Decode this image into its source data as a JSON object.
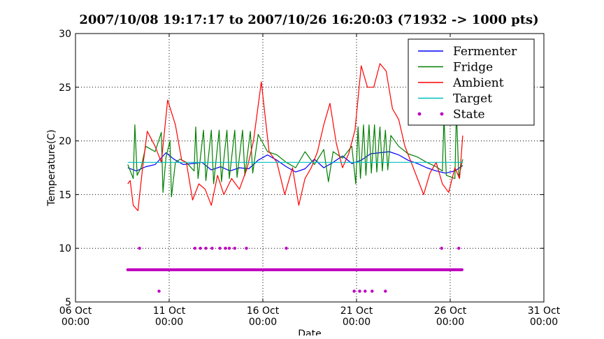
{
  "chart_data": {
    "type": "line",
    "title": "2007/10/08 19:17:17 to 2007/10/26 16:20:03 (71932 -> 1000 pts)",
    "xlabel": "Date",
    "ylabel": "Temperature(C)",
    "x_type": "date",
    "xlim": [
      "2007-10-06 00:00",
      "2007-10-31 00:00"
    ],
    "ylim": [
      5,
      30
    ],
    "grid": true,
    "legend_position": "top-right",
    "x_ticks": [
      {
        "value": "2007-10-06 00:00",
        "line1": "06 Oct",
        "line2": "00:00"
      },
      {
        "value": "2007-10-11 00:00",
        "line1": "11 Oct",
        "line2": "00:00"
      },
      {
        "value": "2007-10-16 00:00",
        "line1": "16 Oct",
        "line2": "00:00"
      },
      {
        "value": "2007-10-21 00:00",
        "line1": "21 Oct",
        "line2": "00:00"
      },
      {
        "value": "2007-10-26 00:00",
        "line1": "26 Oct",
        "line2": "00:00"
      },
      {
        "value": "2007-10-31 00:00",
        "line1": "31 Oct",
        "line2": "00:00"
      }
    ],
    "y_ticks": [
      "5",
      "10",
      "15",
      "20",
      "25",
      "30"
    ],
    "series": [
      {
        "name": "Fermenter",
        "color": "#0000ff",
        "style": "line",
        "points": [
          [
            "2007-10-08 19:00",
            17.5
          ],
          [
            "2007-10-09 06:00",
            17.2
          ],
          [
            "2007-10-09 18:00",
            17.6
          ],
          [
            "2007-10-10 06:00",
            17.8
          ],
          [
            "2007-10-10 20:00",
            18.9
          ],
          [
            "2007-10-11 06:00",
            18.3
          ],
          [
            "2007-10-11 18:00",
            17.8
          ],
          [
            "2007-10-12 06:00",
            17.9
          ],
          [
            "2007-10-12 18:00",
            18.0
          ],
          [
            "2007-10-13 06:00",
            17.3
          ],
          [
            "2007-10-13 18:00",
            17.6
          ],
          [
            "2007-10-14 06:00",
            17.2
          ],
          [
            "2007-10-14 18:00",
            17.5
          ],
          [
            "2007-10-15 06:00",
            17.4
          ],
          [
            "2007-10-15 18:00",
            18.2
          ],
          [
            "2007-10-16 06:00",
            18.7
          ],
          [
            "2007-10-16 18:00",
            18.2
          ],
          [
            "2007-10-17 06:00",
            17.6
          ],
          [
            "2007-10-17 18:00",
            17.1
          ],
          [
            "2007-10-18 06:00",
            17.4
          ],
          [
            "2007-10-18 18:00",
            18.3
          ],
          [
            "2007-10-19 06:00",
            17.5
          ],
          [
            "2007-10-19 18:00",
            18.0
          ],
          [
            "2007-10-20 06:00",
            18.6
          ],
          [
            "2007-10-20 18:00",
            17.9
          ],
          [
            "2007-10-21 06:00",
            18.2
          ],
          [
            "2007-10-21 18:00",
            18.8
          ],
          [
            "2007-10-22 06:00",
            18.9
          ],
          [
            "2007-10-22 18:00",
            19.0
          ],
          [
            "2007-10-23 06:00",
            18.7
          ],
          [
            "2007-10-23 18:00",
            18.2
          ],
          [
            "2007-10-24 06:00",
            17.9
          ],
          [
            "2007-10-24 18:00",
            17.5
          ],
          [
            "2007-10-25 06:00",
            17.2
          ],
          [
            "2007-10-25 18:00",
            17.0
          ],
          [
            "2007-10-26 06:00",
            17.2
          ],
          [
            "2007-10-26 16:00",
            17.7
          ]
        ]
      },
      {
        "name": "Fridge",
        "color": "#008000",
        "style": "line",
        "points": [
          [
            "2007-10-08 19:00",
            17.8
          ],
          [
            "2007-10-09 02:00",
            16.5
          ],
          [
            "2007-10-09 04:00",
            21.5
          ],
          [
            "2007-10-09 07:00",
            16.8
          ],
          [
            "2007-10-09 12:00",
            17.5
          ],
          [
            "2007-10-09 18:00",
            19.5
          ],
          [
            "2007-10-10 06:00",
            19.0
          ],
          [
            "2007-10-10 14:00",
            20.8
          ],
          [
            "2007-10-10 16:00",
            15.2
          ],
          [
            "2007-10-10 20:00",
            18.5
          ],
          [
            "2007-10-11 01:00",
            20.0
          ],
          [
            "2007-10-11 03:00",
            14.8
          ],
          [
            "2007-10-11 08:00",
            18.0
          ],
          [
            "2007-10-11 14:00",
            18.3
          ],
          [
            "2007-10-11 22:00",
            18.0
          ],
          [
            "2007-10-12 08:00",
            17.2
          ],
          [
            "2007-10-12 10:00",
            21.3
          ],
          [
            "2007-10-12 13:00",
            16.5
          ],
          [
            "2007-10-12 20:00",
            21.0
          ],
          [
            "2007-10-12 23:00",
            16.3
          ],
          [
            "2007-10-13 06:00",
            21.0
          ],
          [
            "2007-10-13 09:00",
            16.0
          ],
          [
            "2007-10-13 16:00",
            21.0
          ],
          [
            "2007-10-13 19:00",
            16.2
          ],
          [
            "2007-10-14 02:00",
            21.0
          ],
          [
            "2007-10-14 05:00",
            16.5
          ],
          [
            "2007-10-14 12:00",
            21.0
          ],
          [
            "2007-10-14 15:00",
            16.6
          ],
          [
            "2007-10-14 22:00",
            21.0
          ],
          [
            "2007-10-15 01:00",
            16.8
          ],
          [
            "2007-10-15 08:00",
            20.9
          ],
          [
            "2007-10-15 11:00",
            17.0
          ],
          [
            "2007-10-15 18:00",
            20.6
          ],
          [
            "2007-10-16 06:00",
            19.0
          ],
          [
            "2007-10-16 18:00",
            18.7
          ],
          [
            "2007-10-17 06:00",
            18.0
          ],
          [
            "2007-10-17 18:00",
            17.5
          ],
          [
            "2007-10-18 06:00",
            19.0
          ],
          [
            "2007-10-18 18:00",
            17.8
          ],
          [
            "2007-10-19 06:00",
            19.2
          ],
          [
            "2007-10-19 12:00",
            16.2
          ],
          [
            "2007-10-19 18:00",
            19.0
          ],
          [
            "2007-10-20 06:00",
            18.4
          ],
          [
            "2007-10-20 18:00",
            19.5
          ],
          [
            "2007-10-20 23:00",
            16.0
          ],
          [
            "2007-10-21 02:00",
            21.3
          ],
          [
            "2007-10-21 05:00",
            16.5
          ],
          [
            "2007-10-21 09:00",
            21.5
          ],
          [
            "2007-10-21 12:00",
            16.8
          ],
          [
            "2007-10-21 16:00",
            21.5
          ],
          [
            "2007-10-21 19:00",
            17.0
          ],
          [
            "2007-10-21 23:00",
            21.5
          ],
          [
            "2007-10-22 02:00",
            17.1
          ],
          [
            "2007-10-22 06:00",
            21.3
          ],
          [
            "2007-10-22 09:00",
            17.2
          ],
          [
            "2007-10-22 13:00",
            21.0
          ],
          [
            "2007-10-22 16:00",
            17.3
          ],
          [
            "2007-10-22 20:00",
            20.5
          ],
          [
            "2007-10-23 06:00",
            19.5
          ],
          [
            "2007-10-23 18:00",
            18.8
          ],
          [
            "2007-10-24 06:00",
            18.5
          ],
          [
            "2007-10-24 18:00",
            18.0
          ],
          [
            "2007-10-25 06:00",
            17.6
          ],
          [
            "2007-10-25 14:00",
            17.2
          ],
          [
            "2007-10-25 16:00",
            22.2
          ],
          [
            "2007-10-25 19:00",
            16.8
          ],
          [
            "2007-10-26 06:00",
            16.5
          ],
          [
            "2007-10-26 08:00",
            22.8
          ],
          [
            "2007-10-26 11:00",
            16.6
          ],
          [
            "2007-10-26 16:00",
            18.3
          ]
        ]
      },
      {
        "name": "Ambient",
        "color": "#ff0000",
        "style": "line",
        "points": [
          [
            "2007-10-08 19:00",
            16.0
          ],
          [
            "2007-10-08 22:00",
            16.3
          ],
          [
            "2007-10-09 02:00",
            14.0
          ],
          [
            "2007-10-09 08:00",
            13.5
          ],
          [
            "2007-10-09 14:00",
            17.5
          ],
          [
            "2007-10-09 20:00",
            20.9
          ],
          [
            "2007-10-10 06:00",
            19.5
          ],
          [
            "2007-10-10 14:00",
            18.0
          ],
          [
            "2007-10-10 22:00",
            23.8
          ],
          [
            "2007-10-11 08:00",
            21.5
          ],
          [
            "2007-10-11 16:00",
            18.2
          ],
          [
            "2007-10-11 22:00",
            18.0
          ],
          [
            "2007-10-12 06:00",
            14.5
          ],
          [
            "2007-10-12 14:00",
            16.0
          ],
          [
            "2007-10-12 22:00",
            15.5
          ],
          [
            "2007-10-13 06:00",
            14.0
          ],
          [
            "2007-10-13 14:00",
            16.8
          ],
          [
            "2007-10-13 22:00",
            15.0
          ],
          [
            "2007-10-14 08:00",
            16.5
          ],
          [
            "2007-10-14 18:00",
            15.5
          ],
          [
            "2007-10-15 04:00",
            17.5
          ],
          [
            "2007-10-15 12:00",
            20.0
          ],
          [
            "2007-10-15 22:00",
            25.5
          ],
          [
            "2007-10-16 08:00",
            19.0
          ],
          [
            "2007-10-16 18:00",
            18.0
          ],
          [
            "2007-10-17 04:00",
            15.0
          ],
          [
            "2007-10-17 14:00",
            17.5
          ],
          [
            "2007-10-17 22:00",
            14.0
          ],
          [
            "2007-10-18 06:00",
            16.5
          ],
          [
            "2007-10-18 14:00",
            17.5
          ],
          [
            "2007-10-18 22:00",
            19.0
          ],
          [
            "2007-10-19 06:00",
            21.5
          ],
          [
            "2007-10-19 14:00",
            23.5
          ],
          [
            "2007-10-19 22:00",
            19.8
          ],
          [
            "2007-10-20 06:00",
            17.5
          ],
          [
            "2007-10-20 14:00",
            18.8
          ],
          [
            "2007-10-20 22:00",
            21.0
          ],
          [
            "2007-10-21 06:00",
            27.0
          ],
          [
            "2007-10-21 14:00",
            25.0
          ],
          [
            "2007-10-21 22:00",
            25.0
          ],
          [
            "2007-10-22 06:00",
            27.2
          ],
          [
            "2007-10-22 14:00",
            26.5
          ],
          [
            "2007-10-22 22:00",
            23.0
          ],
          [
            "2007-10-23 06:00",
            22.0
          ],
          [
            "2007-10-23 14:00",
            19.5
          ],
          [
            "2007-10-23 22:00",
            18.0
          ],
          [
            "2007-10-24 06:00",
            16.5
          ],
          [
            "2007-10-24 14:00",
            15.0
          ],
          [
            "2007-10-24 22:00",
            17.0
          ],
          [
            "2007-10-25 06:00",
            18.0
          ],
          [
            "2007-10-25 14:00",
            16.0
          ],
          [
            "2007-10-25 22:00",
            15.2
          ],
          [
            "2007-10-26 06:00",
            17.5
          ],
          [
            "2007-10-26 12:00",
            16.5
          ],
          [
            "2007-10-26 16:00",
            20.5
          ]
        ]
      },
      {
        "name": "Target",
        "color": "#00bfbf",
        "style": "line",
        "points": [
          [
            "2007-10-08 19:00",
            18.0
          ],
          [
            "2007-10-26 16:00",
            18.0
          ]
        ]
      },
      {
        "name": "State",
        "color": "#bf00bf",
        "style": "markers",
        "baseline": {
          "y": 8,
          "from": "2007-10-08 19:00",
          "to": "2007-10-26 16:00",
          "interval_hours": 2
        },
        "points": [
          [
            "2007-10-09 10:00",
            10
          ],
          [
            "2007-10-10 11:00",
            6
          ],
          [
            "2007-10-12 09:00",
            10
          ],
          [
            "2007-10-12 16:00",
            10
          ],
          [
            "2007-10-12 23:00",
            10
          ],
          [
            "2007-10-13 07:00",
            10
          ],
          [
            "2007-10-13 17:00",
            10
          ],
          [
            "2007-10-14 00:00",
            10
          ],
          [
            "2007-10-14 05:00",
            10
          ],
          [
            "2007-10-14 12:00",
            10
          ],
          [
            "2007-10-15 03:00",
            10
          ],
          [
            "2007-10-17 06:00",
            10
          ],
          [
            "2007-10-20 21:00",
            6
          ],
          [
            "2007-10-21 04:00",
            6
          ],
          [
            "2007-10-21 11:00",
            6
          ],
          [
            "2007-10-21 20:00",
            6
          ],
          [
            "2007-10-22 13:00",
            6
          ],
          [
            "2007-10-25 13:00",
            10
          ],
          [
            "2007-10-26 11:00",
            10
          ]
        ]
      }
    ]
  }
}
